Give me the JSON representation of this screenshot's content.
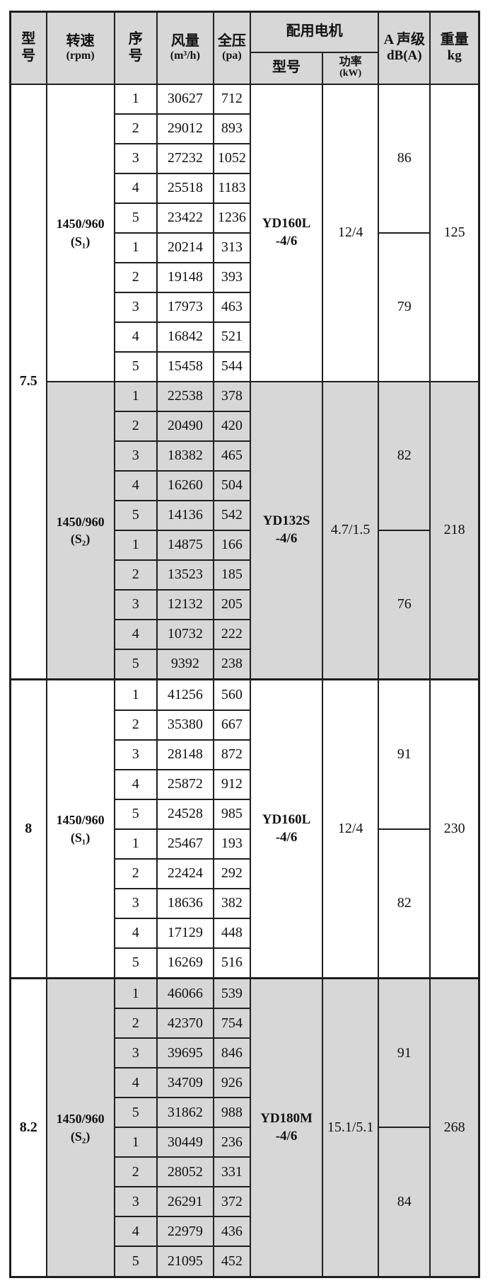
{
  "table": {
    "header": {
      "model_label": "型\n号",
      "speed_label": "转速",
      "speed_unit": "(rpm)",
      "seq_label": "序\n号",
      "airflow_label": "风量",
      "airflow_unit": "(m³/h)",
      "pressure_label": "全压",
      "pressure_unit": "(pa)",
      "motor_group_label": "配用电机",
      "motor_model_label": "型号",
      "power_label": "功率",
      "power_unit": "(kW)",
      "noise_label": "A 声级",
      "noise_unit": "dB(A)",
      "weight_label": "重量",
      "weight_unit": "kg"
    },
    "colors": {
      "shaded_bg": "#d7d7d7",
      "border": "#1f1f1f",
      "background": "#ffffff"
    },
    "models": [
      {
        "model": "7.5",
        "sections": [
          {
            "speed": "1450/960",
            "variant": "(S₁)",
            "shaded": false,
            "motor_line1": "YD160L",
            "motor_line2": "-4/6",
            "power": "12/4",
            "noise_high": "86",
            "noise_low": "79",
            "weight": "125",
            "rows": [
              {
                "seq": "1",
                "airflow": "30627",
                "pressure": "712"
              },
              {
                "seq": "2",
                "airflow": "29012",
                "pressure": "893"
              },
              {
                "seq": "3",
                "airflow": "27232",
                "pressure": "1052"
              },
              {
                "seq": "4",
                "airflow": "25518",
                "pressure": "1183"
              },
              {
                "seq": "5",
                "airflow": "23422",
                "pressure": "1236"
              },
              {
                "seq": "1",
                "airflow": "20214",
                "pressure": "313"
              },
              {
                "seq": "2",
                "airflow": "19148",
                "pressure": "393"
              },
              {
                "seq": "3",
                "airflow": "17973",
                "pressure": "463"
              },
              {
                "seq": "4",
                "airflow": "16842",
                "pressure": "521"
              },
              {
                "seq": "5",
                "airflow": "15458",
                "pressure": "544"
              }
            ]
          },
          {
            "speed": "1450/960",
            "variant": "(S₂)",
            "shaded": true,
            "motor_line1": "YD132S",
            "motor_line2": "-4/6",
            "power": "4.7/1.5",
            "noise_high": "82",
            "noise_low": "76",
            "weight": "218",
            "rows": [
              {
                "seq": "1",
                "airflow": "22538",
                "pressure": "378"
              },
              {
                "seq": "2",
                "airflow": "20490",
                "pressure": "420"
              },
              {
                "seq": "3",
                "airflow": "18382",
                "pressure": "465"
              },
              {
                "seq": "4",
                "airflow": "16260",
                "pressure": "504"
              },
              {
                "seq": "5",
                "airflow": "14136",
                "pressure": "542"
              },
              {
                "seq": "1",
                "airflow": "14875",
                "pressure": "166"
              },
              {
                "seq": "2",
                "airflow": "13523",
                "pressure": "185"
              },
              {
                "seq": "3",
                "airflow": "12132",
                "pressure": "205"
              },
              {
                "seq": "4",
                "airflow": "10732",
                "pressure": "222"
              },
              {
                "seq": "5",
                "airflow": "9392",
                "pressure": "238"
              }
            ]
          }
        ]
      },
      {
        "model": "8",
        "sections": [
          {
            "speed": "1450/960",
            "variant": "(S₁)",
            "shaded": false,
            "motor_line1": "YD160L",
            "motor_line2": "-4/6",
            "power": "12/4",
            "noise_high": "91",
            "noise_low": "82",
            "weight": "230",
            "rows": [
              {
                "seq": "1",
                "airflow": "41256",
                "pressure": "560"
              },
              {
                "seq": "2",
                "airflow": "35380",
                "pressure": "667"
              },
              {
                "seq": "3",
                "airflow": "28148",
                "pressure": "872"
              },
              {
                "seq": "4",
                "airflow": "25872",
                "pressure": "912"
              },
              {
                "seq": "5",
                "airflow": "24528",
                "pressure": "985"
              },
              {
                "seq": "1",
                "airflow": "25467",
                "pressure": "193"
              },
              {
                "seq": "2",
                "airflow": "22424",
                "pressure": "292"
              },
              {
                "seq": "3",
                "airflow": "18636",
                "pressure": "382"
              },
              {
                "seq": "4",
                "airflow": "17129",
                "pressure": "448"
              },
              {
                "seq": "5",
                "airflow": "16269",
                "pressure": "516"
              }
            ]
          }
        ]
      },
      {
        "model": "8.2",
        "sections": [
          {
            "speed": "1450/960",
            "variant": "(S₂)",
            "shaded": true,
            "motor_line1": "YD180M",
            "motor_line2": "-4/6",
            "power": "15.1/5.1",
            "noise_high": "91",
            "noise_low": "84",
            "weight": "268",
            "rows": [
              {
                "seq": "1",
                "airflow": "46066",
                "pressure": "539"
              },
              {
                "seq": "2",
                "airflow": "42370",
                "pressure": "754"
              },
              {
                "seq": "3",
                "airflow": "39695",
                "pressure": "846"
              },
              {
                "seq": "4",
                "airflow": "34709",
                "pressure": "926"
              },
              {
                "seq": "5",
                "airflow": "31862",
                "pressure": "988"
              },
              {
                "seq": "1",
                "airflow": "30449",
                "pressure": "236"
              },
              {
                "seq": "2",
                "airflow": "28052",
                "pressure": "331"
              },
              {
                "seq": "3",
                "airflow": "26291",
                "pressure": "372"
              },
              {
                "seq": "4",
                "airflow": "22979",
                "pressure": "436"
              },
              {
                "seq": "5",
                "airflow": "21095",
                "pressure": "452"
              }
            ]
          }
        ]
      }
    ]
  }
}
